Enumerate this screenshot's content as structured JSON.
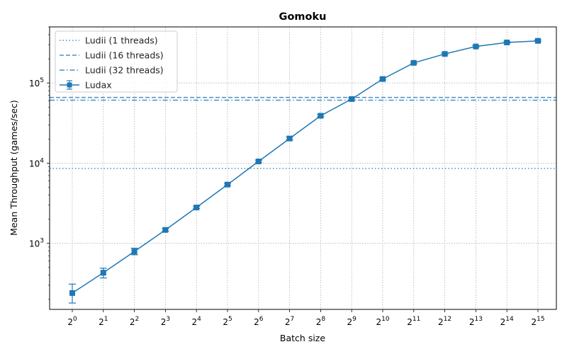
{
  "chart_data": {
    "type": "line",
    "title": "Gomoku",
    "xlabel": "Batch size",
    "ylabel": "Mean Throughput (games/sec)",
    "yscale": "log",
    "ylim": [
      150,
      500000
    ],
    "grid": true,
    "legend_position": "top-left",
    "x": [
      1,
      2,
      4,
      8,
      16,
      32,
      64,
      128,
      256,
      512,
      1024,
      2048,
      4096,
      8192,
      16384,
      32768
    ],
    "x_tick_exponents": [
      "0",
      "1",
      "2",
      "3",
      "4",
      "5",
      "6",
      "7",
      "8",
      "9",
      "10",
      "11",
      "12",
      "13",
      "14",
      "15"
    ],
    "x_tick_base": "2",
    "y_ticks": [
      {
        "value": 1000,
        "base": "10",
        "exp": "3"
      },
      {
        "value": 10000,
        "base": "10",
        "exp": "4"
      },
      {
        "value": 100000,
        "base": "10",
        "exp": "5"
      }
    ],
    "series": [
      {
        "name": "Ludax",
        "color": "#1f77b4",
        "marker": "square",
        "values": [
          240,
          430,
          790,
          1470,
          2800,
          5400,
          10500,
          20300,
          39000,
          63000,
          112000,
          178000,
          230000,
          285000,
          320000,
          335000
        ],
        "err_low": [
          180,
          370,
          720,
          1420,
          2720,
          5250,
          10200,
          19500,
          37800,
          61500,
          109000,
          174000,
          225000,
          279000,
          314000,
          328000
        ],
        "err_high": [
          310,
          490,
          870,
          1530,
          2900,
          5600,
          10900,
          21200,
          40500,
          65000,
          116000,
          183000,
          236000,
          292000,
          328000,
          344000
        ]
      }
    ],
    "reference_lines": [
      {
        "name": "Ludii (1 threads)",
        "value": 8600,
        "style": "dotted",
        "color": "#4a90c4"
      },
      {
        "name": "Ludii (16 threads)",
        "value": 66000,
        "style": "dashed",
        "color": "#4a90c4"
      },
      {
        "name": "Ludii (32 threads)",
        "value": 61000,
        "style": "dashdot",
        "color": "#4a90c4"
      }
    ]
  }
}
